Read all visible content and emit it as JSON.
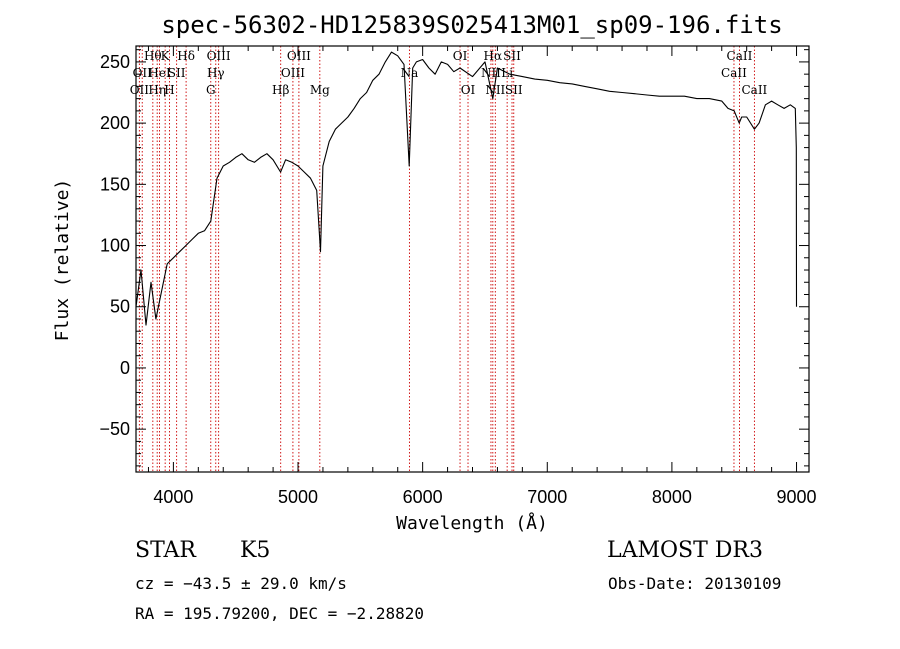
{
  "chart_data": {
    "type": "line",
    "title": "spec-56302-HD125839S025413M01_sp09-196.fits",
    "xlabel": "Wavelength (Å)",
    "ylabel": "Flux (relative)",
    "xlim": [
      3700,
      9100
    ],
    "ylim": [
      -85,
      263
    ],
    "xticks": [
      4000,
      5000,
      6000,
      7000,
      8000,
      9000
    ],
    "yticks": [
      -50,
      0,
      50,
      100,
      150,
      200,
      250
    ],
    "series": [
      {
        "name": "spectrum",
        "x": [
          3700,
          3740,
          3780,
          3820,
          3860,
          3900,
          3950,
          4000,
          4050,
          4100,
          4150,
          4200,
          4250,
          4300,
          4350,
          4400,
          4450,
          4500,
          4550,
          4600,
          4650,
          4700,
          4750,
          4800,
          4860,
          4900,
          4950,
          5000,
          5050,
          5100,
          5150,
          5180,
          5200,
          5250,
          5300,
          5350,
          5400,
          5450,
          5500,
          5550,
          5600,
          5650,
          5700,
          5750,
          5800,
          5850,
          5892,
          5920,
          5950,
          6000,
          6050,
          6100,
          6150,
          6200,
          6250,
          6300,
          6400,
          6500,
          6563,
          6600,
          6700,
          6800,
          6900,
          7000,
          7100,
          7200,
          7300,
          7400,
          7500,
          7600,
          7700,
          7800,
          7900,
          8000,
          8100,
          8200,
          8300,
          8400,
          8450,
          8500,
          8540,
          8560,
          8600,
          8662,
          8700,
          8750,
          8800,
          8850,
          8900,
          8950,
          8990,
          8998,
          9000
        ],
        "y": [
          50,
          80,
          35,
          70,
          40,
          60,
          85,
          90,
          95,
          100,
          105,
          110,
          112,
          120,
          155,
          165,
          168,
          172,
          175,
          170,
          168,
          172,
          175,
          170,
          160,
          170,
          168,
          165,
          160,
          155,
          145,
          95,
          165,
          185,
          195,
          200,
          205,
          212,
          220,
          225,
          235,
          240,
          250,
          258,
          255,
          248,
          165,
          245,
          250,
          252,
          245,
          240,
          250,
          248,
          242,
          245,
          238,
          250,
          220,
          245,
          240,
          238,
          236,
          235,
          233,
          232,
          230,
          228,
          226,
          225,
          224,
          223,
          222,
          222,
          222,
          220,
          220,
          218,
          212,
          210,
          200,
          205,
          205,
          195,
          200,
          215,
          218,
          215,
          212,
          215,
          212,
          180,
          50
        ]
      }
    ],
    "line_markers": [
      {
        "wavelength": 3727,
        "label": "OII",
        "row": 2
      },
      {
        "wavelength": 3750,
        "label": "OII",
        "row": 1
      },
      {
        "wavelength": 3835,
        "label": "Hθ",
        "row": 0
      },
      {
        "wavelength": 3870,
        "label": "Hη",
        "row": 2
      },
      {
        "wavelength": 3889,
        "label": "HeI",
        "row": 1
      },
      {
        "wavelength": 3934,
        "label": "K",
        "row": 0
      },
      {
        "wavelength": 3969,
        "label": "H",
        "row": 2
      },
      {
        "wavelength": 4026,
        "label": "SII",
        "row": 1
      },
      {
        "wavelength": 4102,
        "label": "Hδ",
        "row": 0
      },
      {
        "wavelength": 4300,
        "label": "G",
        "row": 2
      },
      {
        "wavelength": 4340,
        "label": "Hγ",
        "row": 1
      },
      {
        "wavelength": 4363,
        "label": "OIII",
        "row": 0
      },
      {
        "wavelength": 4861,
        "label": "Hβ",
        "row": 2
      },
      {
        "wavelength": 4959,
        "label": "OIII",
        "row": 1
      },
      {
        "wavelength": 5007,
        "label": "OIII",
        "row": 0
      },
      {
        "wavelength": 5175,
        "label": "Mg",
        "row": 2
      },
      {
        "wavelength": 5894,
        "label": "Na",
        "row": 1
      },
      {
        "wavelength": 6300,
        "label": "OI",
        "row": 0
      },
      {
        "wavelength": 6364,
        "label": "OI",
        "row": 2
      },
      {
        "wavelength": 6548,
        "label": "NII",
        "row": 1
      },
      {
        "wavelength": 6563,
        "label": "Hα",
        "row": 0
      },
      {
        "wavelength": 6583,
        "label": "NII",
        "row": 2
      },
      {
        "wavelength": 6678,
        "label": "Li",
        "row": 1
      },
      {
        "wavelength": 6717,
        "label": "SII",
        "row": 0
      },
      {
        "wavelength": 6731,
        "label": "SII",
        "row": 2
      },
      {
        "wavelength": 8498,
        "label": "CaII",
        "row": 1
      },
      {
        "wavelength": 8542,
        "label": "CaII",
        "row": 0
      },
      {
        "wavelength": 8662,
        "label": "CaII",
        "row": 2
      }
    ]
  },
  "info": {
    "class": "STAR",
    "subclass": "K5",
    "cz": "cz = −43.5 ± 29.0 km/s",
    "coords": "RA = 195.79200, DEC =  −2.28820",
    "survey": "LAMOST DR3",
    "obs_date": "Obs-Date: 20130109"
  }
}
